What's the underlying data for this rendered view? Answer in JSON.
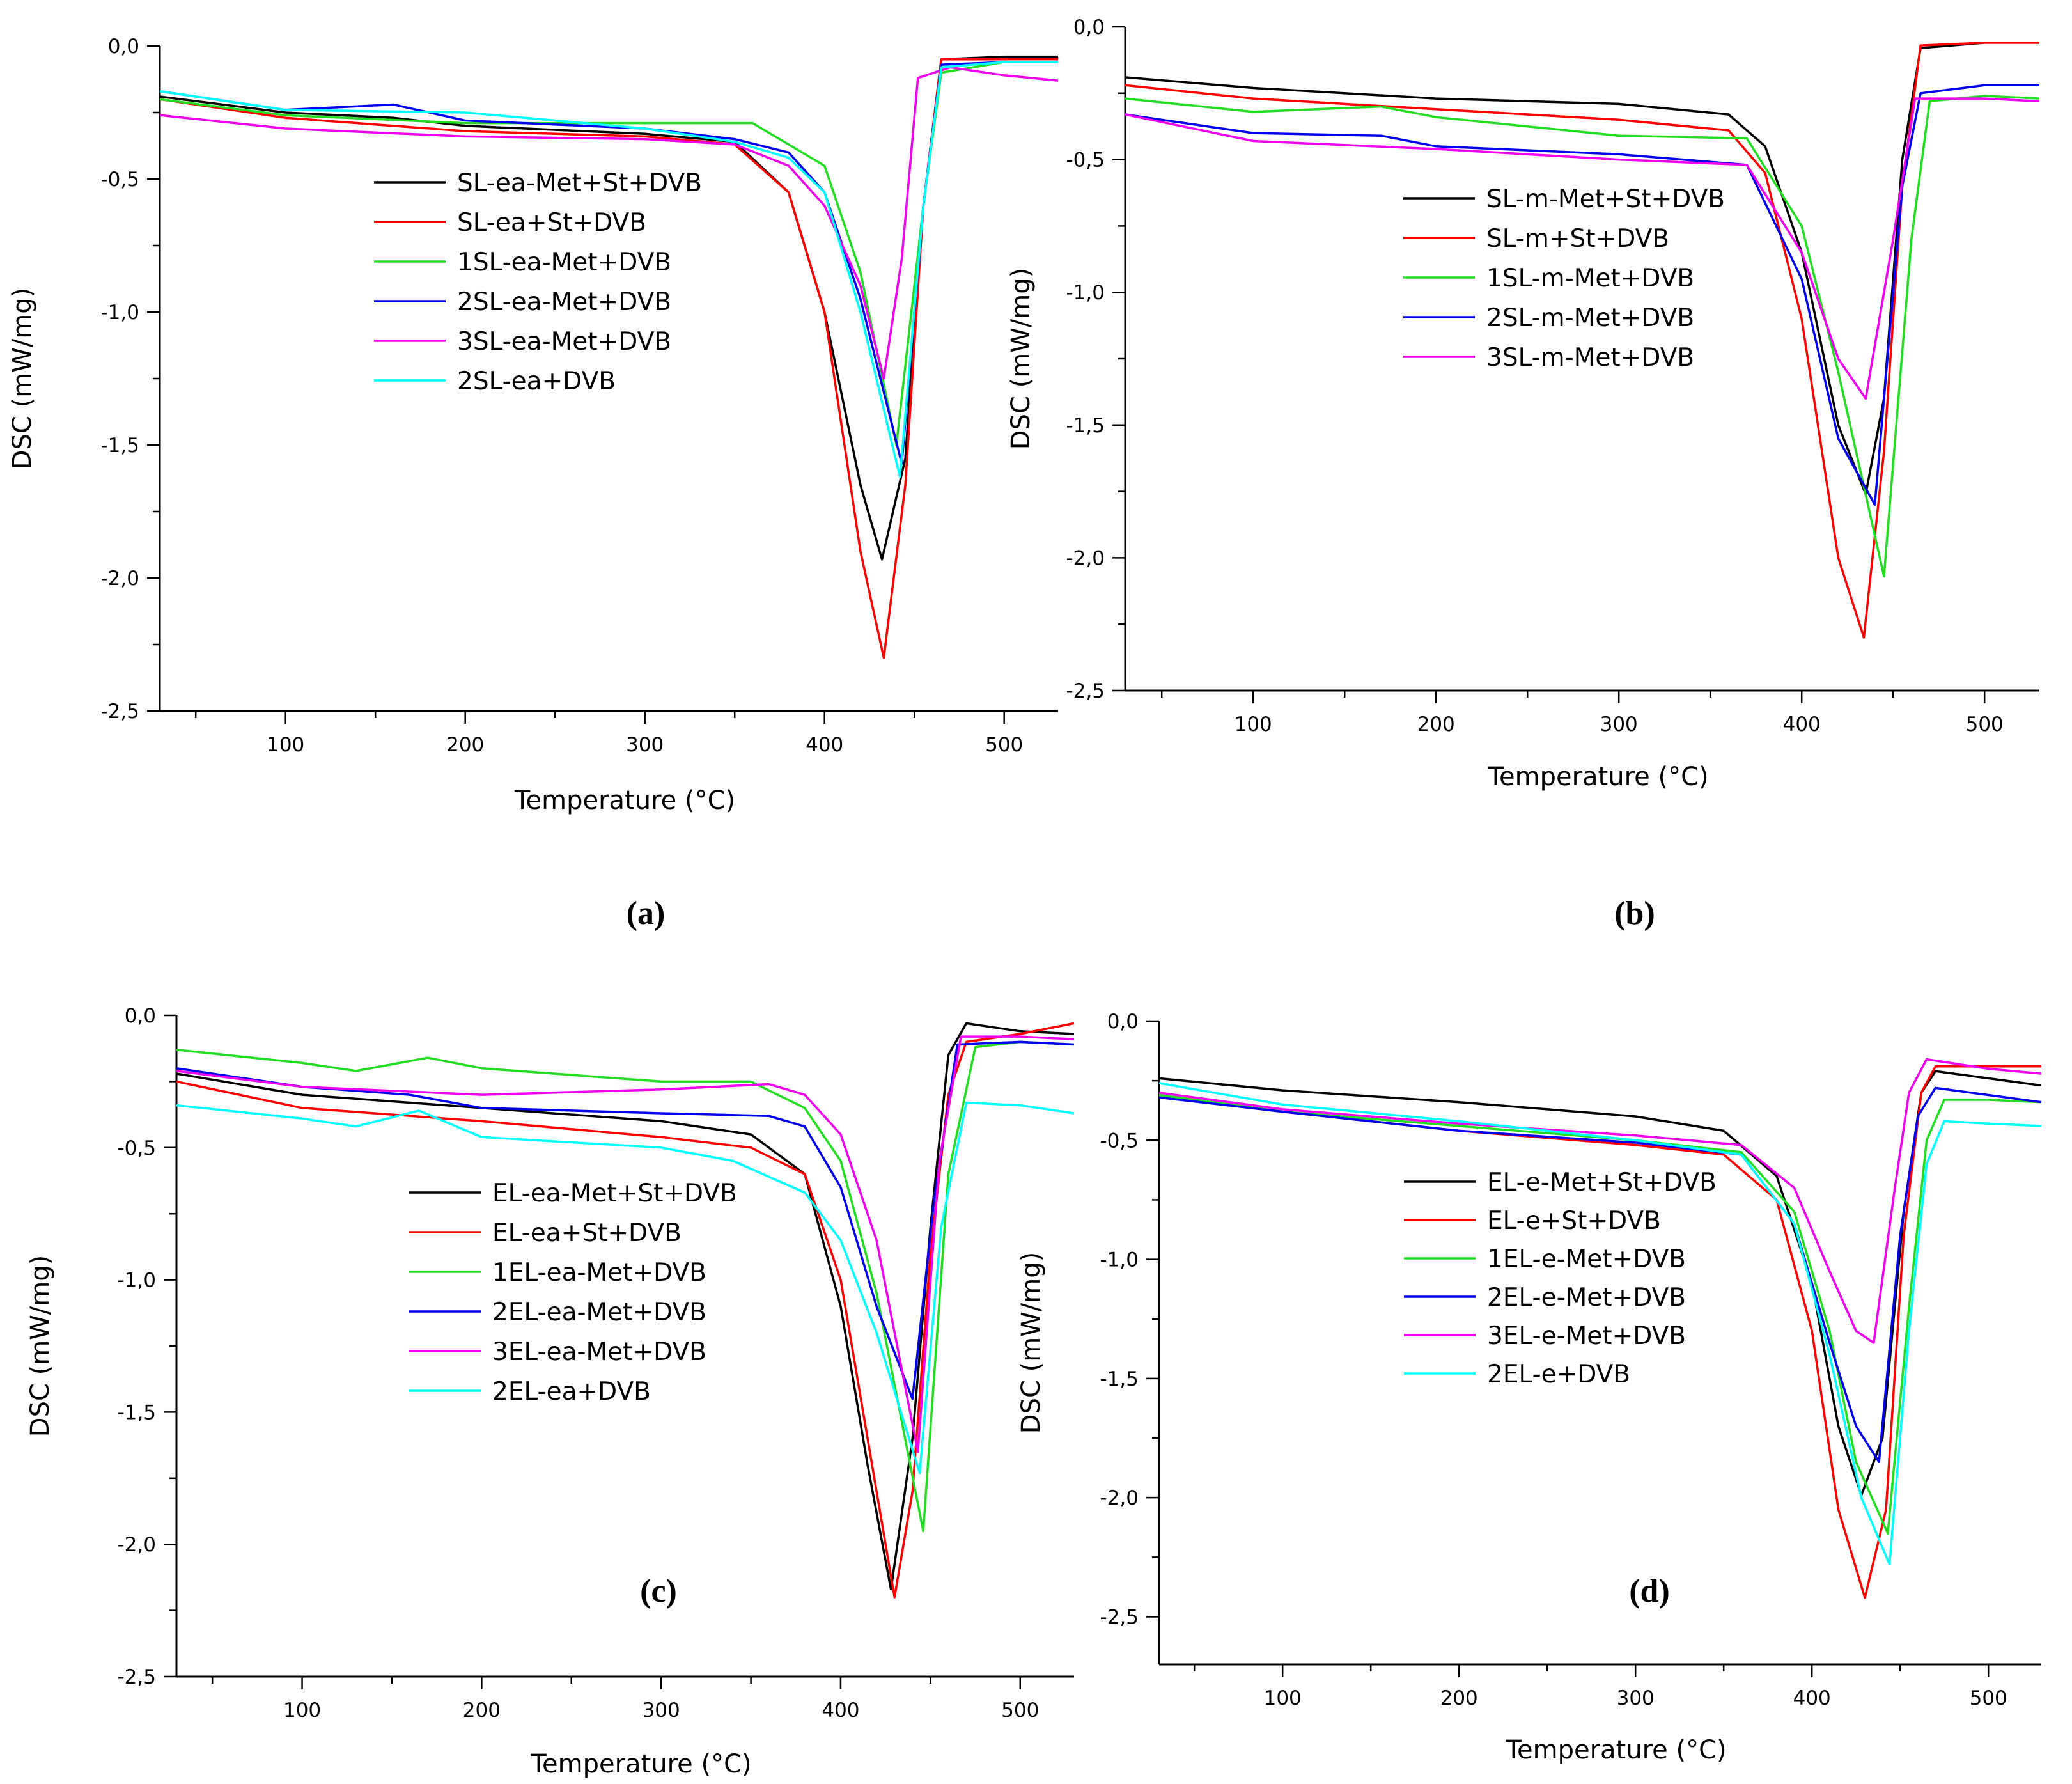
{
  "figure": {
    "background": "#ffffff",
    "series_colors": {
      "black": "#000000",
      "red": "#ff0000",
      "green": "#22dd22",
      "blue": "#0000ee",
      "magenta": "#ee00ee",
      "cyan": "#00ffff"
    }
  },
  "chart_data": [
    {
      "panel": "(a)",
      "type": "line",
      "xlabel": "Temperature (°C)",
      "ylabel": "DSC (mW/mg)",
      "xlim": [
        30,
        530
      ],
      "ylim": [
        -2.5,
        0.0
      ],
      "xticks": [
        100,
        200,
        300,
        400,
        500
      ],
      "xtick_labels": [
        "100",
        "200",
        "300",
        "400",
        "500"
      ],
      "yticks": [
        0.0,
        -0.5,
        -1.0,
        -1.5,
        -2.0,
        -2.5
      ],
      "ytick_labels": [
        "0,0",
        "-0,5",
        "-1,0",
        "-1,5",
        "-2,0",
        "-2,5"
      ],
      "legend_position": "center",
      "series": [
        {
          "name": "SL-ea-Met+St+DVB",
          "color": "#000000",
          "x": [
            30,
            100,
            160,
            200,
            300,
            350,
            380,
            400,
            420,
            432,
            445,
            455,
            465,
            500,
            530
          ],
          "y": [
            -0.19,
            -0.25,
            -0.27,
            -0.3,
            -0.33,
            -0.36,
            -0.55,
            -1.0,
            -1.65,
            -1.93,
            -1.55,
            -0.6,
            -0.05,
            -0.04,
            -0.04
          ]
        },
        {
          "name": "SL-ea+St+DVB",
          "color": "#ff0000",
          "x": [
            30,
            100,
            200,
            300,
            350,
            380,
            400,
            420,
            433,
            445,
            455,
            465,
            500,
            530
          ],
          "y": [
            -0.2,
            -0.27,
            -0.32,
            -0.34,
            -0.37,
            -0.55,
            -1.0,
            -1.9,
            -2.3,
            -1.65,
            -0.6,
            -0.05,
            -0.05,
            -0.05
          ]
        },
        {
          "name": "1SL-ea-Met+DVB",
          "color": "#22dd22",
          "x": [
            30,
            100,
            200,
            300,
            360,
            400,
            420,
            440,
            455,
            465,
            500,
            530
          ],
          "y": [
            -0.2,
            -0.26,
            -0.29,
            -0.29,
            -0.29,
            -0.45,
            -0.85,
            -1.5,
            -0.6,
            -0.1,
            -0.06,
            -0.06
          ]
        },
        {
          "name": "2SL-ea-Met+DVB",
          "color": "#0000ee",
          "x": [
            30,
            100,
            160,
            200,
            300,
            350,
            380,
            400,
            420,
            443,
            455,
            465,
            500,
            530
          ],
          "y": [
            -0.17,
            -0.24,
            -0.22,
            -0.28,
            -0.31,
            -0.35,
            -0.4,
            -0.55,
            -0.95,
            -1.57,
            -0.6,
            -0.07,
            -0.06,
            -0.06
          ]
        },
        {
          "name": "3SL-ea-Met+DVB",
          "color": "#ee00ee",
          "x": [
            30,
            100,
            200,
            300,
            350,
            380,
            400,
            420,
            433,
            443,
            452,
            470,
            500,
            530
          ],
          "y": [
            -0.26,
            -0.31,
            -0.34,
            -0.35,
            -0.37,
            -0.45,
            -0.6,
            -0.9,
            -1.25,
            -0.8,
            -0.12,
            -0.08,
            -0.11,
            -0.13
          ]
        },
        {
          "name": "2SL-ea+DVB",
          "color": "#00ffff",
          "x": [
            30,
            100,
            200,
            300,
            350,
            380,
            400,
            420,
            442,
            455,
            465,
            500,
            530
          ],
          "y": [
            -0.17,
            -0.24,
            -0.25,
            -0.31,
            -0.36,
            -0.42,
            -0.55,
            -1.0,
            -1.62,
            -0.6,
            -0.08,
            -0.06,
            -0.06
          ]
        }
      ]
    },
    {
      "panel": "(b)",
      "type": "line",
      "xlabel": "Temperature (°C)",
      "ylabel": "DSC (mW/mg)",
      "xlim": [
        30,
        530
      ],
      "ylim": [
        -2.5,
        0.0
      ],
      "xticks": [
        100,
        200,
        300,
        400,
        500
      ],
      "xtick_labels": [
        "100",
        "200",
        "300",
        "400",
        "500"
      ],
      "yticks": [
        0.0,
        -0.5,
        -1.0,
        -1.5,
        -2.0,
        -2.5
      ],
      "ytick_labels": [
        "0,0",
        "-0,5",
        "-1,0",
        "-1,5",
        "-2,0",
        "-2,5"
      ],
      "legend_position": "center",
      "series": [
        {
          "name": "SL-m-Met+St+DVB",
          "color": "#000000",
          "x": [
            30,
            100,
            200,
            300,
            360,
            380,
            400,
            420,
            435,
            445,
            455,
            465,
            500,
            530
          ],
          "y": [
            -0.19,
            -0.23,
            -0.27,
            -0.29,
            -0.33,
            -0.45,
            -0.85,
            -1.5,
            -1.76,
            -1.4,
            -0.5,
            -0.08,
            -0.06,
            -0.06
          ]
        },
        {
          "name": "SL-m+St+DVB",
          "color": "#ff0000",
          "x": [
            30,
            100,
            200,
            300,
            360,
            380,
            400,
            420,
            434,
            445,
            455,
            465,
            500,
            530
          ],
          "y": [
            -0.22,
            -0.27,
            -0.31,
            -0.35,
            -0.39,
            -0.55,
            -1.1,
            -2.0,
            -2.3,
            -1.6,
            -0.6,
            -0.07,
            -0.06,
            -0.06
          ]
        },
        {
          "name": "1SL-m-Met+DVB",
          "color": "#22dd22",
          "x": [
            30,
            100,
            170,
            200,
            300,
            370,
            400,
            420,
            445,
            460,
            470,
            500,
            530
          ],
          "y": [
            -0.27,
            -0.32,
            -0.3,
            -0.34,
            -0.41,
            -0.42,
            -0.75,
            -1.3,
            -2.07,
            -0.8,
            -0.28,
            -0.26,
            -0.27
          ]
        },
        {
          "name": "2SL-m-Met+DVB",
          "color": "#0000ee",
          "x": [
            30,
            100,
            170,
            200,
            300,
            370,
            400,
            420,
            440,
            455,
            465,
            500,
            530
          ],
          "y": [
            -0.33,
            -0.4,
            -0.41,
            -0.45,
            -0.48,
            -0.52,
            -0.95,
            -1.55,
            -1.8,
            -0.6,
            -0.25,
            -0.22,
            -0.22
          ]
        },
        {
          "name": "3SL-m-Met+DVB",
          "color": "#ee00ee",
          "x": [
            30,
            100,
            200,
            300,
            370,
            400,
            420,
            435,
            450,
            462,
            500,
            530
          ],
          "y": [
            -0.33,
            -0.43,
            -0.46,
            -0.5,
            -0.52,
            -0.85,
            -1.25,
            -1.4,
            -0.8,
            -0.27,
            -0.27,
            -0.28
          ]
        }
      ]
    },
    {
      "panel": "(c)",
      "type": "line",
      "xlabel": "Temperature (°C)",
      "ylabel": "DSC (mW/mg)",
      "xlim": [
        30,
        530
      ],
      "ylim": [
        -2.5,
        0.0
      ],
      "xticks": [
        100,
        200,
        300,
        400,
        500
      ],
      "xtick_labels": [
        "100",
        "200",
        "300",
        "400",
        "500"
      ],
      "yticks": [
        0.0,
        -0.5,
        -1.0,
        -1.5,
        -2.0,
        -2.5
      ],
      "ytick_labels": [
        "0,0",
        "-0,5",
        "-1,0",
        "-1,5",
        "-2,0",
        "-2,5"
      ],
      "legend_position": "center",
      "series": [
        {
          "name": "EL-ea-Met+St+DVB",
          "color": "#000000",
          "x": [
            30,
            100,
            160,
            200,
            300,
            350,
            380,
            400,
            415,
            428,
            440,
            450,
            460,
            470,
            500,
            530
          ],
          "y": [
            -0.22,
            -0.3,
            -0.33,
            -0.35,
            -0.4,
            -0.45,
            -0.6,
            -1.1,
            -1.7,
            -2.17,
            -1.6,
            -0.8,
            -0.15,
            -0.03,
            -0.06,
            -0.07
          ]
        },
        {
          "name": "EL-ea+St+DVB",
          "color": "#ff0000",
          "x": [
            30,
            100,
            200,
            300,
            350,
            380,
            400,
            415,
            430,
            440,
            450,
            460,
            470,
            500,
            530
          ],
          "y": [
            -0.25,
            -0.35,
            -0.4,
            -0.46,
            -0.5,
            -0.6,
            -1.0,
            -1.6,
            -2.2,
            -1.8,
            -0.9,
            -0.3,
            -0.1,
            -0.07,
            -0.03
          ]
        },
        {
          "name": "1EL-ea-Met+DVB",
          "color": "#22dd22",
          "x": [
            30,
            100,
            130,
            170,
            200,
            300,
            350,
            380,
            400,
            420,
            446,
            460,
            475,
            500,
            530
          ],
          "y": [
            -0.13,
            -0.18,
            -0.21,
            -0.16,
            -0.2,
            -0.25,
            -0.25,
            -0.35,
            -0.55,
            -1.05,
            -1.95,
            -0.6,
            -0.12,
            -0.1,
            -0.11
          ]
        },
        {
          "name": "2EL-ea-Met+DVB",
          "color": "#0000ee",
          "x": [
            30,
            100,
            160,
            200,
            300,
            360,
            380,
            400,
            420,
            440,
            452,
            465,
            500,
            530
          ],
          "y": [
            -0.2,
            -0.27,
            -0.3,
            -0.35,
            -0.37,
            -0.38,
            -0.42,
            -0.65,
            -1.1,
            -1.45,
            -0.7,
            -0.11,
            -0.1,
            -0.11
          ]
        },
        {
          "name": "3EL-ea-Met+DVB",
          "color": "#ee00ee",
          "x": [
            30,
            100,
            200,
            300,
            360,
            380,
            400,
            420,
            443,
            455,
            467,
            500,
            530
          ],
          "y": [
            -0.21,
            -0.27,
            -0.3,
            -0.28,
            -0.26,
            -0.3,
            -0.45,
            -0.85,
            -1.65,
            -0.55,
            -0.08,
            -0.08,
            -0.09
          ]
        },
        {
          "name": "2EL-ea+DVB",
          "color": "#00ffff",
          "x": [
            30,
            100,
            130,
            165,
            200,
            300,
            340,
            380,
            400,
            420,
            444,
            456,
            470,
            500,
            530
          ],
          "y": [
            -0.34,
            -0.39,
            -0.42,
            -0.36,
            -0.46,
            -0.5,
            -0.55,
            -0.67,
            -0.85,
            -1.2,
            -1.73,
            -0.8,
            -0.33,
            -0.34,
            -0.37
          ]
        }
      ]
    },
    {
      "panel": "(d)",
      "type": "line",
      "xlabel": "Temperature (°C)",
      "ylabel": "DSC (mW/mg)",
      "xlim": [
        30,
        530
      ],
      "ylim": [
        -2.7,
        0.0
      ],
      "xticks": [
        100,
        200,
        300,
        400,
        500
      ],
      "xtick_labels": [
        "100",
        "200",
        "300",
        "400",
        "500"
      ],
      "yticks": [
        0.0,
        -0.5,
        -1.0,
        -1.5,
        -2.0,
        -2.5
      ],
      "ytick_labels": [
        "0,0",
        "-0,5",
        "-1,0",
        "-1,5",
        "-2,0",
        "-2,5"
      ],
      "legend_position": "center",
      "series": [
        {
          "name": "EL-e-Met+St+DVB",
          "color": "#000000",
          "x": [
            30,
            100,
            200,
            300,
            350,
            380,
            400,
            415,
            428,
            440,
            452,
            462,
            470,
            500,
            530
          ],
          "y": [
            -0.24,
            -0.29,
            -0.34,
            -0.4,
            -0.46,
            -0.65,
            -1.1,
            -1.7,
            -1.99,
            -1.75,
            -0.8,
            -0.3,
            -0.21,
            -0.24,
            -0.27
          ]
        },
        {
          "name": "EL-e+St+DVB",
          "color": "#ff0000",
          "x": [
            30,
            100,
            200,
            300,
            350,
            380,
            400,
            415,
            430,
            442,
            452,
            462,
            470,
            500,
            530
          ],
          "y": [
            -0.31,
            -0.38,
            -0.46,
            -0.52,
            -0.56,
            -0.75,
            -1.3,
            -2.05,
            -2.42,
            -2.05,
            -0.9,
            -0.3,
            -0.19,
            -0.19,
            -0.19
          ]
        },
        {
          "name": "1EL-e-Met+DVB",
          "color": "#22dd22",
          "x": [
            30,
            100,
            200,
            300,
            360,
            390,
            410,
            425,
            443,
            455,
            465,
            475,
            500,
            530
          ],
          "y": [
            -0.31,
            -0.38,
            -0.44,
            -0.5,
            -0.55,
            -0.8,
            -1.3,
            -1.85,
            -2.15,
            -1.2,
            -0.5,
            -0.33,
            -0.33,
            -0.34
          ]
        },
        {
          "name": "2EL-e-Met+DVB",
          "color": "#0000ee",
          "x": [
            30,
            100,
            200,
            300,
            360,
            390,
            410,
            425,
            438,
            450,
            460,
            470,
            500,
            530
          ],
          "y": [
            -0.32,
            -0.38,
            -0.46,
            -0.51,
            -0.56,
            -0.85,
            -1.35,
            -1.7,
            -1.85,
            -0.9,
            -0.4,
            -0.28,
            -0.31,
            -0.34
          ]
        },
        {
          "name": "3EL-e-Met+DVB",
          "color": "#ee00ee",
          "x": [
            30,
            100,
            200,
            300,
            360,
            390,
            410,
            425,
            435,
            447,
            455,
            465,
            500,
            530
          ],
          "y": [
            -0.3,
            -0.37,
            -0.43,
            -0.48,
            -0.52,
            -0.7,
            -1.05,
            -1.3,
            -1.35,
            -0.7,
            -0.3,
            -0.16,
            -0.2,
            -0.22
          ]
        },
        {
          "name": "2EL-e+DVB",
          "color": "#00ffff",
          "x": [
            30,
            100,
            200,
            300,
            360,
            390,
            410,
            428,
            444,
            455,
            465,
            475,
            500,
            530
          ],
          "y": [
            -0.26,
            -0.35,
            -0.42,
            -0.5,
            -0.56,
            -0.85,
            -1.4,
            -2.0,
            -2.28,
            -1.3,
            -0.6,
            -0.42,
            -0.43,
            -0.44
          ]
        }
      ]
    }
  ]
}
